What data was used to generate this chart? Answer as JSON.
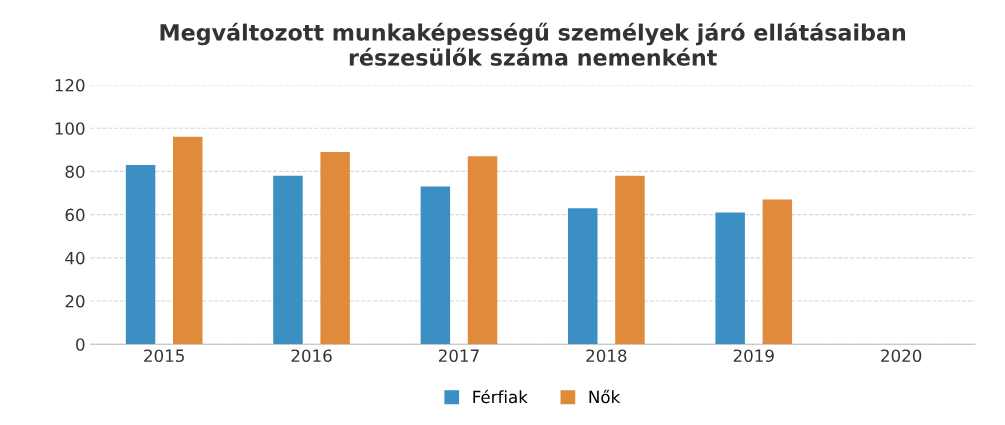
{
  "chart_data": {
    "type": "bar",
    "title": "Megváltozott munkaképességű személyek járó ellátásaiban\nrészesülők száma nemenként",
    "categories": [
      "2015",
      "2016",
      "2017",
      "2018",
      "2019",
      "2020"
    ],
    "series": [
      {
        "name": "Férfiak",
        "color": "#3b8fc2",
        "values": [
          83,
          78,
          73,
          63,
          61,
          null
        ]
      },
      {
        "name": "Nők",
        "color": "#e08a3c",
        "values": [
          96,
          89,
          87,
          78,
          67,
          null
        ]
      }
    ],
    "ylim": [
      0,
      120
    ],
    "yticks": [
      0,
      20,
      40,
      60,
      80,
      100,
      120
    ],
    "grid": "y",
    "legend": "bottom"
  }
}
